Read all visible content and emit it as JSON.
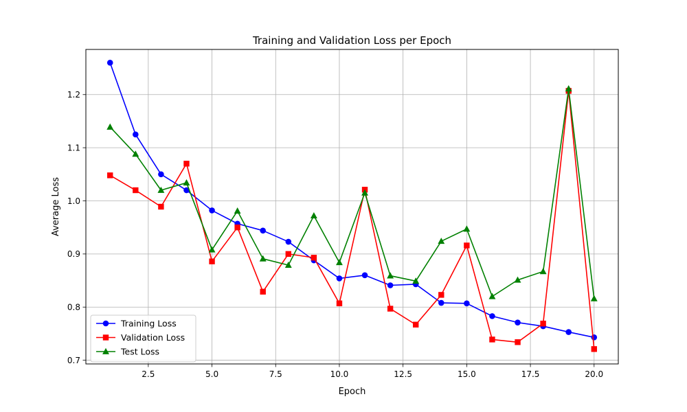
{
  "chart_data": {
    "type": "line",
    "title": "Training and Validation Loss per Epoch",
    "xlabel": "Epoch",
    "ylabel": "Average Loss",
    "xlim": [
      0.05,
      20.95
    ],
    "ylim": [
      0.693,
      1.285
    ],
    "xticks": [
      2.5,
      5.0,
      7.5,
      10.0,
      12.5,
      15.0,
      17.5,
      20.0
    ],
    "xtick_labels": [
      "2.5",
      "5.0",
      "7.5",
      "10.0",
      "12.5",
      "15.0",
      "17.5",
      "20.0"
    ],
    "yticks": [
      0.7,
      0.8,
      0.9,
      1.0,
      1.1,
      1.2
    ],
    "ytick_labels": [
      "0.7",
      "0.8",
      "0.9",
      "1.0",
      "1.1",
      "1.2"
    ],
    "grid": true,
    "legend_position": "lower-left",
    "x": [
      1,
      2,
      3,
      4,
      5,
      6,
      7,
      8,
      9,
      10,
      11,
      12,
      13,
      14,
      15,
      16,
      17,
      18,
      19,
      20
    ],
    "series": [
      {
        "name": "Training Loss",
        "color": "#0000ff",
        "marker": "circle",
        "values": [
          1.26,
          1.125,
          1.05,
          1.02,
          0.982,
          0.957,
          0.944,
          0.923,
          0.888,
          0.854,
          0.86,
          0.841,
          0.843,
          0.808,
          0.807,
          0.783,
          0.771,
          0.764,
          0.753,
          0.743
        ]
      },
      {
        "name": "Validation Loss",
        "color": "#ff0000",
        "marker": "square",
        "values": [
          1.048,
          1.02,
          0.989,
          1.07,
          0.886,
          0.95,
          0.829,
          0.9,
          0.893,
          0.807,
          1.021,
          0.797,
          0.767,
          0.823,
          0.916,
          0.739,
          0.734,
          0.769,
          1.207,
          0.721
        ]
      },
      {
        "name": "Test Loss",
        "color": "#008000",
        "marker": "triangle",
        "values": [
          1.139,
          1.088,
          1.02,
          1.034,
          0.908,
          0.981,
          0.891,
          0.879,
          0.972,
          0.884,
          1.015,
          0.859,
          0.849,
          0.924,
          0.947,
          0.82,
          0.851,
          0.867,
          1.211,
          0.816
        ]
      }
    ]
  }
}
